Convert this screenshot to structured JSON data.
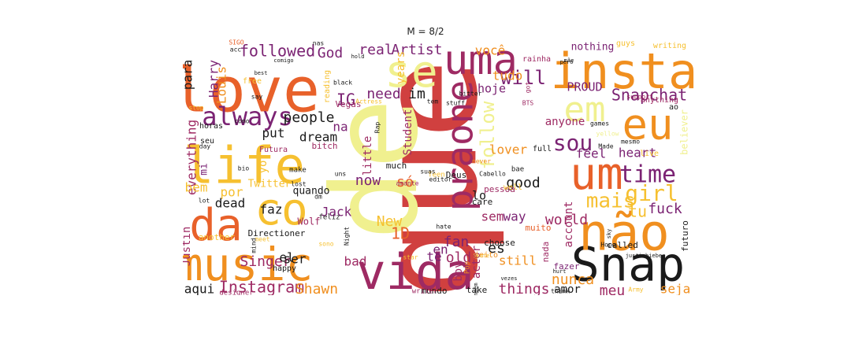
{
  "title": "M = 8/2",
  "chart_data": {
    "type": "wordcloud",
    "title": "M = 8/2",
    "colors": {
      "black": "#1a1a1a",
      "purple": "#7b2373",
      "plum": "#9e2a63",
      "red": "#d0403f",
      "orange": "#e8612a",
      "amber": "#f08f1f",
      "gold": "#f6c030",
      "yellow": "#f0f08f",
      "pale": "#f7f4b8"
    },
    "words": [
      {
        "text": "que",
        "rank": 1,
        "color": "red"
      },
      {
        "text": "de",
        "rank": 2,
        "color": "yellow"
      },
      {
        "text": "love",
        "rank": 3,
        "color": "orange"
      },
      {
        "text": "music",
        "rank": 4,
        "color": "amber"
      },
      {
        "text": "life",
        "rank": 5,
        "color": "gold"
      },
      {
        "text": "Snap",
        "rank": 6,
        "color": "black"
      },
      {
        "text": "vida",
        "rank": 7,
        "color": "plum"
      },
      {
        "text": "não",
        "rank": 8,
        "color": "amber"
      },
      {
        "text": "insta",
        "rank": 9,
        "color": "amber"
      },
      {
        "text": "uma",
        "rank": 10,
        "color": "plum"
      },
      {
        "text": "se",
        "rank": 11,
        "color": "yellow"
      },
      {
        "text": "eu",
        "rank": 12,
        "color": "amber"
      },
      {
        "text": "um",
        "rank": 13,
        "color": "orange"
      },
      {
        "text": "da",
        "rank": 14,
        "color": "orange"
      },
      {
        "text": "co",
        "rank": 15,
        "color": "gold"
      },
      {
        "text": "em",
        "rank": 16,
        "color": "yellow"
      },
      {
        "text": "praone",
        "rank": 17,
        "color": "plum"
      },
      {
        "text": "always",
        "rank": 18,
        "color": "purple"
      },
      {
        "text": "follow",
        "rank": 19,
        "color": "yellow"
      },
      {
        "text": "time",
        "rank": 20,
        "color": "purple"
      },
      {
        "text": "girl",
        "rank": 21,
        "color": "gold"
      },
      {
        "text": "mais",
        "rank": 22,
        "color": "gold"
      },
      {
        "text": "sou",
        "rank": 23,
        "color": "purple"
      },
      {
        "text": "Instagram",
        "rank": 24,
        "color": "plum"
      },
      {
        "text": "followed",
        "rank": 25,
        "color": "purple"
      },
      {
        "text": "Snapchat",
        "rank": 26,
        "color": "purple"
      },
      {
        "text": "people",
        "rank": 27,
        "color": "black"
      },
      {
        "text": "fuck",
        "rank": 28,
        "color": "purple"
      },
      {
        "text": "tu",
        "rank": 29,
        "color": "gold"
      },
      {
        "text": "heart",
        "rank": 30,
        "color": "purple"
      },
      {
        "text": "will",
        "rank": 31,
        "color": "purple"
      },
      {
        "text": "world",
        "rank": 32,
        "color": "plum"
      },
      {
        "text": "good",
        "rank": 33,
        "color": "black"
      },
      {
        "text": "Singer",
        "rank": 34,
        "color": "plum"
      },
      {
        "text": "Shawn",
        "rank": 35,
        "color": "amber"
      },
      {
        "text": "things",
        "rank": 36,
        "color": "plum"
      },
      {
        "text": "nunca",
        "rank": 37,
        "color": "amber"
      },
      {
        "text": "meu",
        "rank": 38,
        "color": "plum"
      },
      {
        "text": "seja",
        "rank": 39,
        "color": "amber"
      },
      {
        "text": "Artist",
        "rank": 40,
        "color": "purple"
      },
      {
        "text": "real",
        "rank": 41,
        "color": "purple"
      },
      {
        "text": "God",
        "rank": 42,
        "color": "purple"
      },
      {
        "text": "você",
        "rank": 43,
        "color": "amber"
      },
      {
        "text": "tudo",
        "rank": 44,
        "color": "amber"
      },
      {
        "text": "hoje",
        "rank": 45,
        "color": "purple"
      },
      {
        "text": "PROUD",
        "rank": 46,
        "color": "purple"
      },
      {
        "text": "need",
        "rank": 47,
        "color": "purple"
      },
      {
        "text": "IG",
        "rank": 48,
        "color": "purple"
      },
      {
        "text": "im",
        "rank": 49,
        "color": "black"
      },
      {
        "text": "Harry",
        "rank": 50,
        "color": "purple"
      },
      {
        "text": "Louis",
        "rank": 51,
        "color": "amber"
      },
      {
        "text": "para",
        "rank": 52,
        "color": "black"
      },
      {
        "text": "lover",
        "rank": 53,
        "color": "amber"
      },
      {
        "text": "feel",
        "rank": 54,
        "color": "purple"
      },
      {
        "text": "anyone",
        "rank": 55,
        "color": "plum"
      },
      {
        "text": "account",
        "rank": 56,
        "color": "plum"
      },
      {
        "text": "dream",
        "rank": 57,
        "color": "black"
      },
      {
        "text": "put",
        "rank": 58,
        "color": "black"
      },
      {
        "text": "na",
        "rank": 59,
        "color": "purple"
      },
      {
        "text": "everything",
        "rank": 60,
        "color": "plum"
      },
      {
        "text": "bem",
        "rank": 61,
        "color": "gold"
      },
      {
        "text": "por",
        "rank": 62,
        "color": "gold"
      },
      {
        "text": "Justin",
        "rank": 63,
        "color": "plum"
      },
      {
        "text": "dead",
        "rank": 64,
        "color": "black"
      },
      {
        "text": "faz",
        "rank": 65,
        "color": "black"
      },
      {
        "text": "Jack",
        "rank": 66,
        "color": "purple"
      },
      {
        "text": "New",
        "rank": 67,
        "color": "gold"
      },
      {
        "text": "1D",
        "rank": 68,
        "color": "orange"
      },
      {
        "text": "now",
        "rank": 69,
        "color": "purple"
      },
      {
        "text": "só",
        "rank": 70,
        "color": "orange"
      },
      {
        "text": "lo",
        "rank": 71,
        "color": "black"
      },
      {
        "text": "sem",
        "rank": 72,
        "color": "plum"
      },
      {
        "text": "way",
        "rank": 73,
        "color": "purple"
      },
      {
        "text": "fan",
        "rank": 74,
        "color": "purple"
      },
      {
        "text": "en",
        "rank": 75,
        "color": "purple"
      },
      {
        "text": "es",
        "rank": 76,
        "color": "black"
      },
      {
        "text": "old",
        "rank": 77,
        "color": "plum"
      },
      {
        "text": "still",
        "rank": 78,
        "color": "amber"
      },
      {
        "text": "actor",
        "rank": 79,
        "color": "plum"
      },
      {
        "text": "ser",
        "rank": 80,
        "color": "black"
      },
      {
        "text": "el",
        "rank": 81,
        "color": "black"
      },
      {
        "text": "bad",
        "rank": 82,
        "color": "plum"
      },
      {
        "text": "te",
        "rank": 83,
        "color": "purple"
      },
      {
        "text": "aqui",
        "rank": 84,
        "color": "black"
      },
      {
        "text": "boy",
        "rank": 85,
        "color": "plum"
      },
      {
        "text": "amor",
        "rank": 86,
        "color": "black"
      },
      {
        "text": "Student",
        "rank": 87,
        "color": "plum"
      },
      {
        "text": "little",
        "rank": 88,
        "color": "plum"
      },
      {
        "text": "years",
        "rank": 89,
        "color": "gold"
      },
      {
        "text": "yo",
        "rank": 90,
        "color": "gold"
      },
      {
        "text": "mi",
        "rank": 91,
        "color": "purple"
      },
      {
        "text": "Twitter",
        "rank": 92,
        "color": "gold"
      },
      {
        "text": "quando",
        "rank": 93,
        "color": "black"
      },
      {
        "text": "nothing",
        "rank": 94,
        "color": "purple"
      },
      {
        "text": "bitch",
        "rank": 95,
        "color": "plum"
      },
      {
        "text": "Vegas",
        "rank": 96,
        "color": "plum"
      },
      {
        "text": "Wolf",
        "rank": 97,
        "color": "plum"
      },
      {
        "text": "Directioner",
        "rank": 98,
        "color": "black"
      },
      {
        "text": "much",
        "rank": 99,
        "color": "black"
      },
      {
        "text": "Deus",
        "rank": 100,
        "color": "black"
      },
      {
        "text": "pessoa",
        "rank": 101,
        "color": "plum"
      },
      {
        "text": "care",
        "rank": 102,
        "color": "black"
      },
      {
        "text": "muito",
        "rank": 103,
        "color": "orange"
      },
      {
        "text": "choose",
        "rank": 104,
        "color": "black"
      },
      {
        "text": "fazer",
        "rank": 105,
        "color": "purple"
      },
      {
        "text": "called",
        "rank": 106,
        "color": "black"
      },
      {
        "text": "futuro",
        "rank": 107,
        "color": "black"
      },
      {
        "text": "nada",
        "rank": 108,
        "color": "plum"
      },
      {
        "text": "mundo",
        "rank": 109,
        "color": "black"
      },
      {
        "text": "take",
        "rank": 110,
        "color": "black"
      },
      {
        "text": "happy",
        "rank": 111,
        "color": "black"
      },
      {
        "text": "another",
        "rank": 112,
        "color": "gold"
      },
      {
        "text": "designer",
        "rank": 113,
        "color": "plum"
      },
      {
        "text": "fangirl",
        "rank": 114,
        "color": "plum"
      },
      {
        "text": "Harry_Styles",
        "rank": 115,
        "color": "plum"
      },
      {
        "text": "writer",
        "rank": 116,
        "color": "plum"
      },
      {
        "text": "guys",
        "rank": 117,
        "color": "gold"
      },
      {
        "text": "writing",
        "rank": 118,
        "color": "gold"
      },
      {
        "text": "rainha",
        "rank": 119,
        "color": "plum"
      },
      {
        "text": "anything",
        "rank": 120,
        "color": "plum"
      },
      {
        "text": "support",
        "rank": 121,
        "color": "plum"
      },
      {
        "text": "games",
        "rank": 122,
        "color": "black"
      },
      {
        "text": "mesmo",
        "rank": 123,
        "color": "black"
      },
      {
        "text": "Made",
        "rank": 124,
        "color": "black"
      },
      {
        "text": "ao",
        "rank": 125,
        "color": "black"
      },
      {
        "text": "believer",
        "rank": 126,
        "color": "yellow"
      },
      {
        "text": "live",
        "rank": 127,
        "color": "gold"
      },
      {
        "text": "full",
        "rank": 128,
        "color": "black"
      },
      {
        "text": "yellow",
        "rank": 129,
        "color": "yellow"
      },
      {
        "text": "never",
        "rank": 130,
        "color": "amber"
      },
      {
        "text": "Cabello",
        "rank": 131,
        "color": "black"
      },
      {
        "text": "bae",
        "rank": 132,
        "color": "black"
      },
      {
        "text": "well",
        "rank": 133,
        "color": "gold"
      },
      {
        "text": "Teen",
        "rank": 134,
        "color": "gold"
      },
      {
        "text": "editor",
        "rank": 135,
        "color": "black"
      },
      {
        "text": "amante",
        "rank": 136,
        "color": "plum"
      },
      {
        "text": "jeito",
        "rank": 137,
        "color": "amber"
      },
      {
        "text": "hate",
        "rank": 138,
        "color": "black"
      },
      {
        "text": "star",
        "rank": 139,
        "color": "gold"
      },
      {
        "text": "Pop",
        "rank": 140,
        "color": "amber"
      },
      {
        "text": "Night",
        "rank": 141,
        "color": "black"
      },
      {
        "text": "sono",
        "rank": 142,
        "color": "gold"
      },
      {
        "text": "meet",
        "rank": 143,
        "color": "gold"
      },
      {
        "text": "mind",
        "rank": 144,
        "color": "black"
      },
      {
        "text": "dm",
        "rank": 145,
        "color": "black"
      },
      {
        "text": "lost",
        "rank": 146,
        "color": "black"
      },
      {
        "text": "lot",
        "rank": 147,
        "color": "black"
      },
      {
        "text": "make",
        "rank": 148,
        "color": "black"
      },
      {
        "text": "Futura",
        "rank": 149,
        "color": "plum"
      },
      {
        "text": "bio",
        "rank": 150,
        "color": "black"
      },
      {
        "text": "seu",
        "rank": 151,
        "color": "black"
      },
      {
        "text": "day",
        "rank": 152,
        "color": "black"
      },
      {
        "text": "horas",
        "rank": 153,
        "color": "black"
      },
      {
        "text": "como",
        "rank": 154,
        "color": "black"
      },
      {
        "text": "stop",
        "rank": 155,
        "color": "gold"
      },
      {
        "text": "feliz",
        "rank": 156,
        "color": "black"
      },
      {
        "text": "reading",
        "rank": 157,
        "color": "gold"
      },
      {
        "text": "say",
        "rank": 158,
        "color": "black"
      },
      {
        "text": "free",
        "rank": 159,
        "color": "gold"
      },
      {
        "text": "acc",
        "rank": 160,
        "color": "black"
      },
      {
        "text": "SIGO",
        "rank": 161,
        "color": "orange"
      },
      {
        "text": "comigo",
        "rank": 162,
        "color": "black"
      },
      {
        "text": "nas",
        "rank": 163,
        "color": "black"
      },
      {
        "text": "hold",
        "rank": 164,
        "color": "black"
      },
      {
        "text": "best",
        "rank": 165,
        "color": "black"
      },
      {
        "text": "black",
        "rank": 166,
        "color": "black"
      },
      {
        "text": "Actress",
        "rank": 167,
        "color": "gold"
      },
      {
        "text": "tem",
        "rank": 168,
        "color": "black"
      },
      {
        "text": "stuff",
        "rank": 169,
        "color": "black"
      },
      {
        "text": "bitter",
        "rank": 170,
        "color": "black"
      },
      {
        "text": "got",
        "rank": 171,
        "color": "plum"
      },
      {
        "text": "BTS",
        "rank": 172,
        "color": "plum"
      },
      {
        "text": "pero",
        "rank": 173,
        "color": "black"
      },
      {
        "text": "Rap",
        "rank": 174,
        "color": "black"
      },
      {
        "text": "uns",
        "rank": 175,
        "color": "black"
      },
      {
        "text": "suas",
        "rank": 176,
        "color": "black"
      },
      {
        "text": "Skate",
        "rank": 177,
        "color": "gold"
      },
      {
        "text": "vezes",
        "rank": 178,
        "color": "black"
      },
      {
        "text": "também",
        "rank": 179,
        "color": "black"
      },
      {
        "text": "hurt",
        "rank": 180,
        "color": "black"
      },
      {
        "text": "think",
        "rank": 181,
        "color": "black"
      },
      {
        "text": "Hope",
        "rank": 182,
        "color": "black"
      },
      {
        "text": "sky",
        "rank": 183,
        "color": "black"
      },
      {
        "text": "justinbieber",
        "rank": 184,
        "color": "black"
      },
      {
        "text": "Army",
        "rank": 185,
        "color": "gold"
      },
      {
        "text": "mãe",
        "rank": 186,
        "color": "black"
      }
    ]
  }
}
